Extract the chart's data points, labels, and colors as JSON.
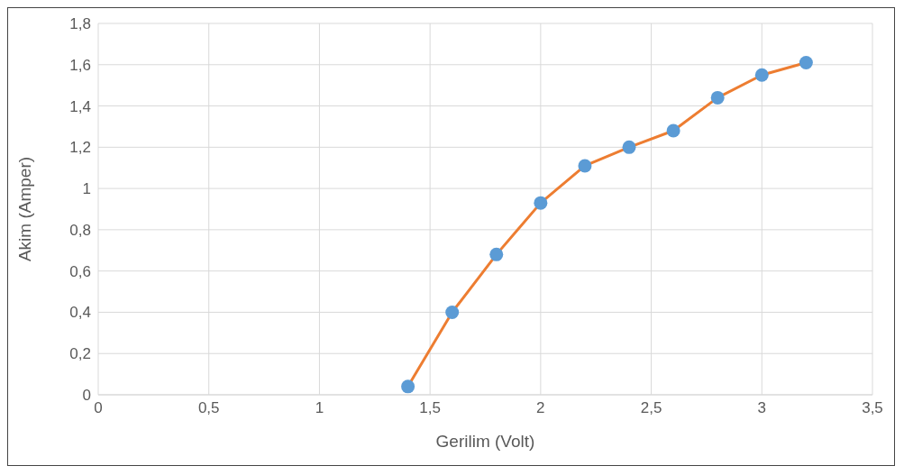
{
  "chart_data": {
    "type": "line",
    "xlabel": "Gerilim (Volt)",
    "ylabel": "Akim (Amper)",
    "x": [
      1.4,
      1.6,
      1.8,
      2.0,
      2.2,
      2.4,
      2.6,
      2.8,
      3.0,
      3.2
    ],
    "series": [
      {
        "color": "#ed7d31",
        "colors": [
          "#5b9bd5",
          "#5b9bd5",
          "#5b9bd5",
          "#5b9bd5",
          "#5b9bd5",
          "#5b9bd5",
          "#5b9bd5",
          "#5b9bd5",
          "#5b9bd5",
          "#5b9bd5"
        ],
        "values": [
          0.04,
          0.4,
          0.68,
          0.93,
          1.11,
          1.2,
          1.28,
          1.44,
          1.55,
          1.61
        ]
      }
    ],
    "xlim": [
      0,
      3.5
    ],
    "xticks": [
      0,
      {
        "value": 0.5,
        "label": "0,5"
      },
      1,
      {
        "value": 1.5,
        "label": "1,5"
      },
      2,
      {
        "value": 2.5,
        "label": "2,5"
      },
      3,
      {
        "value": 3.5,
        "label": "3,5"
      }
    ],
    "ylim": [
      0,
      1.8
    ],
    "yticks": [
      0,
      {
        "value": 0.2,
        "label": "0,2"
      },
      {
        "value": 0.4,
        "label": "0,4"
      },
      {
        "value": 0.6,
        "label": "0,6"
      },
      {
        "value": 0.8,
        "label": "0,8"
      },
      1,
      {
        "value": 1.2,
        "label": "1,2"
      },
      {
        "value": 1.4,
        "label": "1,4"
      },
      {
        "value": 1.6,
        "label": "1,6"
      },
      {
        "value": 1.8,
        "label": "1,8"
      }
    ],
    "grid": true,
    "marker": "circle",
    "line_style": "solid",
    "legend": false
  }
}
